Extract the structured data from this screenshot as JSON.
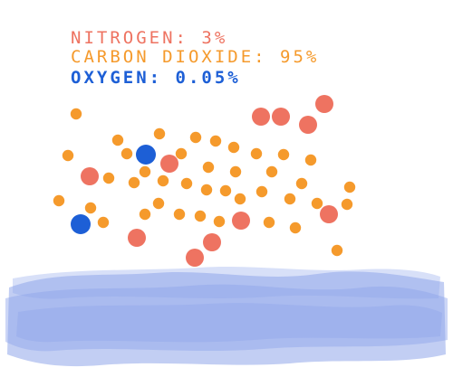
{
  "legend": {
    "nitrogen": {
      "text": "NITROGEN: 3%",
      "color": "#ee7361"
    },
    "carbon_dioxide": {
      "text": "CARBON DIOXIDE: 95%",
      "color": "#f59a2c"
    },
    "oxygen": {
      "text": "OXYGEN: 0.05%",
      "color": "#1d5fd6"
    }
  },
  "water_color": "#8fa5ea",
  "molecules": {
    "nitrogen_count": 11,
    "carbon_dioxide_count": 40,
    "oxygen_count": 2
  }
}
